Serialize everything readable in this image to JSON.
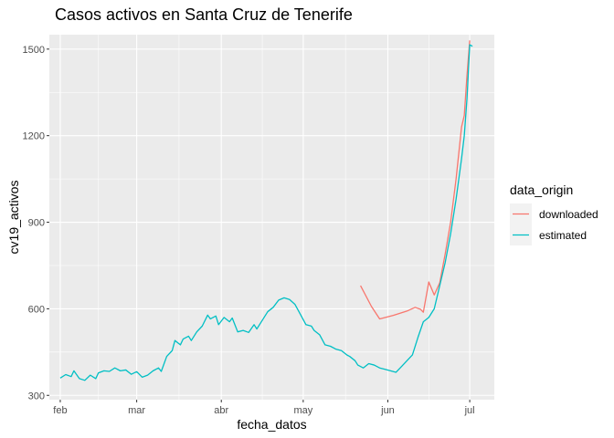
{
  "chart_data": {
    "type": "line",
    "title": "Casos activos en Santa Cruz de Tenerife",
    "xlabel": "fecha_datos",
    "ylabel": "cv19_activos",
    "x_ticks": [
      {
        "label": "feb",
        "date": "2021-02-01"
      },
      {
        "label": "mar",
        "date": "2021-03-01"
      },
      {
        "label": "abr",
        "date": "2021-04-01"
      },
      {
        "label": "may",
        "date": "2021-05-01"
      },
      {
        "label": "jun",
        "date": "2021-06-01"
      },
      {
        "label": "jul",
        "date": "2021-07-01"
      }
    ],
    "xlim": [
      "2021-01-28",
      "2021-07-10"
    ],
    "y_ticks": [
      300,
      600,
      900,
      1200,
      1500
    ],
    "ylim": [
      285,
      1550
    ],
    "grid": true,
    "legend": {
      "title": "data_origin",
      "position": "right"
    },
    "series": [
      {
        "name": "downloaded",
        "color": "#F8766D",
        "points": [
          [
            "2021-05-22",
            680
          ],
          [
            "2021-05-26",
            608
          ],
          [
            "2021-05-29",
            565
          ],
          [
            "2021-06-03",
            577
          ],
          [
            "2021-06-08",
            592
          ],
          [
            "2021-06-11",
            605
          ],
          [
            "2021-06-13",
            598
          ],
          [
            "2021-06-14",
            588
          ],
          [
            "2021-06-16",
            693
          ],
          [
            "2021-06-18",
            648
          ],
          [
            "2021-06-20",
            690
          ],
          [
            "2021-06-22",
            790
          ],
          [
            "2021-06-24",
            900
          ],
          [
            "2021-06-26",
            1050
          ],
          [
            "2021-06-28",
            1230
          ],
          [
            "2021-06-29",
            1270
          ],
          [
            "2021-06-30",
            1410
          ],
          [
            "2021-07-01",
            1530
          ]
        ]
      },
      {
        "name": "estimated",
        "color": "#00BFC4",
        "points": [
          [
            "2021-02-01",
            360
          ],
          [
            "2021-02-03",
            372
          ],
          [
            "2021-02-05",
            365
          ],
          [
            "2021-02-06",
            385
          ],
          [
            "2021-02-08",
            358
          ],
          [
            "2021-02-10",
            352
          ],
          [
            "2021-02-12",
            370
          ],
          [
            "2021-02-14",
            358
          ],
          [
            "2021-02-15",
            378
          ],
          [
            "2021-02-17",
            385
          ],
          [
            "2021-02-19",
            383
          ],
          [
            "2021-02-21",
            395
          ],
          [
            "2021-02-23",
            385
          ],
          [
            "2021-02-25",
            388
          ],
          [
            "2021-02-27",
            373
          ],
          [
            "2021-03-01",
            382
          ],
          [
            "2021-03-03",
            363
          ],
          [
            "2021-03-05",
            370
          ],
          [
            "2021-03-07",
            385
          ],
          [
            "2021-03-09",
            395
          ],
          [
            "2021-03-10",
            383
          ],
          [
            "2021-03-12",
            435
          ],
          [
            "2021-03-14",
            455
          ],
          [
            "2021-03-15",
            490
          ],
          [
            "2021-03-17",
            475
          ],
          [
            "2021-03-18",
            495
          ],
          [
            "2021-03-20",
            505
          ],
          [
            "2021-03-21",
            490
          ],
          [
            "2021-03-23",
            520
          ],
          [
            "2021-03-25",
            540
          ],
          [
            "2021-03-27",
            578
          ],
          [
            "2021-03-28",
            565
          ],
          [
            "2021-03-30",
            575
          ],
          [
            "2021-03-31",
            545
          ],
          [
            "2021-04-02",
            570
          ],
          [
            "2021-04-04",
            555
          ],
          [
            "2021-04-05",
            568
          ],
          [
            "2021-04-07",
            520
          ],
          [
            "2021-04-09",
            525
          ],
          [
            "2021-04-11",
            518
          ],
          [
            "2021-04-13",
            545
          ],
          [
            "2021-04-14",
            530
          ],
          [
            "2021-04-16",
            560
          ],
          [
            "2021-04-18",
            590
          ],
          [
            "2021-04-20",
            605
          ],
          [
            "2021-04-22",
            630
          ],
          [
            "2021-04-24",
            638
          ],
          [
            "2021-04-26",
            632
          ],
          [
            "2021-04-28",
            615
          ],
          [
            "2021-04-30",
            580
          ],
          [
            "2021-05-02",
            545
          ],
          [
            "2021-05-04",
            540
          ],
          [
            "2021-05-05",
            525
          ],
          [
            "2021-05-07",
            510
          ],
          [
            "2021-05-09",
            475
          ],
          [
            "2021-05-11",
            470
          ],
          [
            "2021-05-13",
            460
          ],
          [
            "2021-05-15",
            455
          ],
          [
            "2021-05-17",
            440
          ],
          [
            "2021-05-18",
            435
          ],
          [
            "2021-05-20",
            420
          ],
          [
            "2021-05-21",
            405
          ],
          [
            "2021-05-23",
            395
          ],
          [
            "2021-05-25",
            410
          ],
          [
            "2021-05-27",
            405
          ],
          [
            "2021-05-29",
            395
          ],
          [
            "2021-05-31",
            390
          ],
          [
            "2021-06-02",
            385
          ],
          [
            "2021-06-04",
            380
          ],
          [
            "2021-06-06",
            400
          ],
          [
            "2021-06-08",
            420
          ],
          [
            "2021-06-10",
            440
          ],
          [
            "2021-06-12",
            500
          ],
          [
            "2021-06-14",
            555
          ],
          [
            "2021-06-16",
            570
          ],
          [
            "2021-06-18",
            600
          ],
          [
            "2021-06-20",
            680
          ],
          [
            "2021-06-22",
            760
          ],
          [
            "2021-06-24",
            860
          ],
          [
            "2021-06-26",
            980
          ],
          [
            "2021-06-28",
            1120
          ],
          [
            "2021-06-29",
            1200
          ],
          [
            "2021-06-30",
            1330
          ],
          [
            "2021-07-01",
            1515
          ],
          [
            "2021-07-02",
            1510
          ]
        ]
      }
    ]
  }
}
